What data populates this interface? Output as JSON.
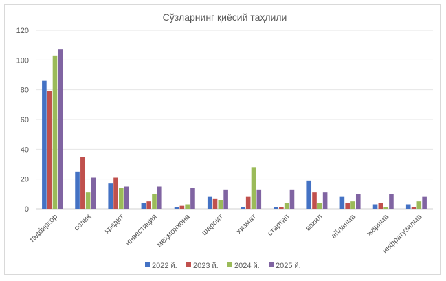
{
  "chart_data": {
    "type": "bar",
    "title": "Сўзларнинг қиёсий таҳлили",
    "xlabel": "",
    "ylabel": "",
    "ylim": [
      0,
      120
    ],
    "yticks": [
      0,
      20,
      40,
      60,
      80,
      100,
      120
    ],
    "grid": true,
    "legend_position": "bottom",
    "categories": [
      "тадбиркор",
      "солиқ",
      "кредит",
      "инвестиция",
      "меҳмонхона",
      "шароит",
      "хизмат",
      "стартап",
      "вакил",
      "айланма",
      "жарима",
      "инфратузилма"
    ],
    "series": [
      {
        "name": "2022 й.",
        "color": "#4472C4",
        "values": [
          86,
          25,
          17,
          4,
          1,
          8,
          1,
          1,
          19,
          8,
          3,
          3
        ]
      },
      {
        "name": "2023 й.",
        "color": "#C0504D",
        "values": [
          79,
          35,
          21,
          5,
          2,
          7,
          8,
          1,
          11,
          4,
          4,
          1
        ]
      },
      {
        "name": "2024 й.",
        "color": "#9BBB59",
        "values": [
          103,
          11,
          14,
          10,
          3,
          6,
          28,
          4,
          4,
          5,
          1,
          5
        ]
      },
      {
        "name": "2025 й.",
        "color": "#8064A2",
        "values": [
          107,
          21,
          15,
          15,
          14,
          13,
          13,
          13,
          11,
          10,
          10,
          8
        ]
      }
    ]
  }
}
